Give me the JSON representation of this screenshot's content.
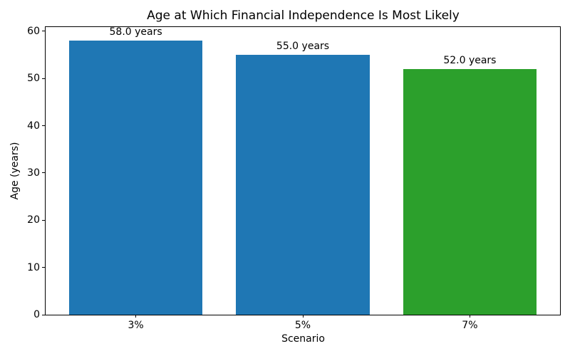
{
  "figure": {
    "background": "#ffffff"
  },
  "chart_data": {
    "type": "bar",
    "title": "Age at Which Financial Independence Is Most Likely",
    "xlabel": "Scenario",
    "ylabel": "Age (years)",
    "categories": [
      "3%",
      "5%",
      "7%"
    ],
    "values": [
      58.0,
      55.0,
      52.0
    ],
    "bar_labels": [
      "58.0 years",
      "55.0 years",
      "52.0 years"
    ],
    "bar_colors": [
      "#1f77b4",
      "#1f77b4",
      "#2ca02c"
    ],
    "ylim": [
      0,
      60.9
    ],
    "xlim": [
      -0.54,
      2.54
    ],
    "yticks": [
      0,
      10,
      20,
      30,
      40,
      50,
      60
    ],
    "bar_width": 0.8,
    "grid": false,
    "legend": "none",
    "axis_color": "#000000",
    "text_color": "#000000"
  }
}
